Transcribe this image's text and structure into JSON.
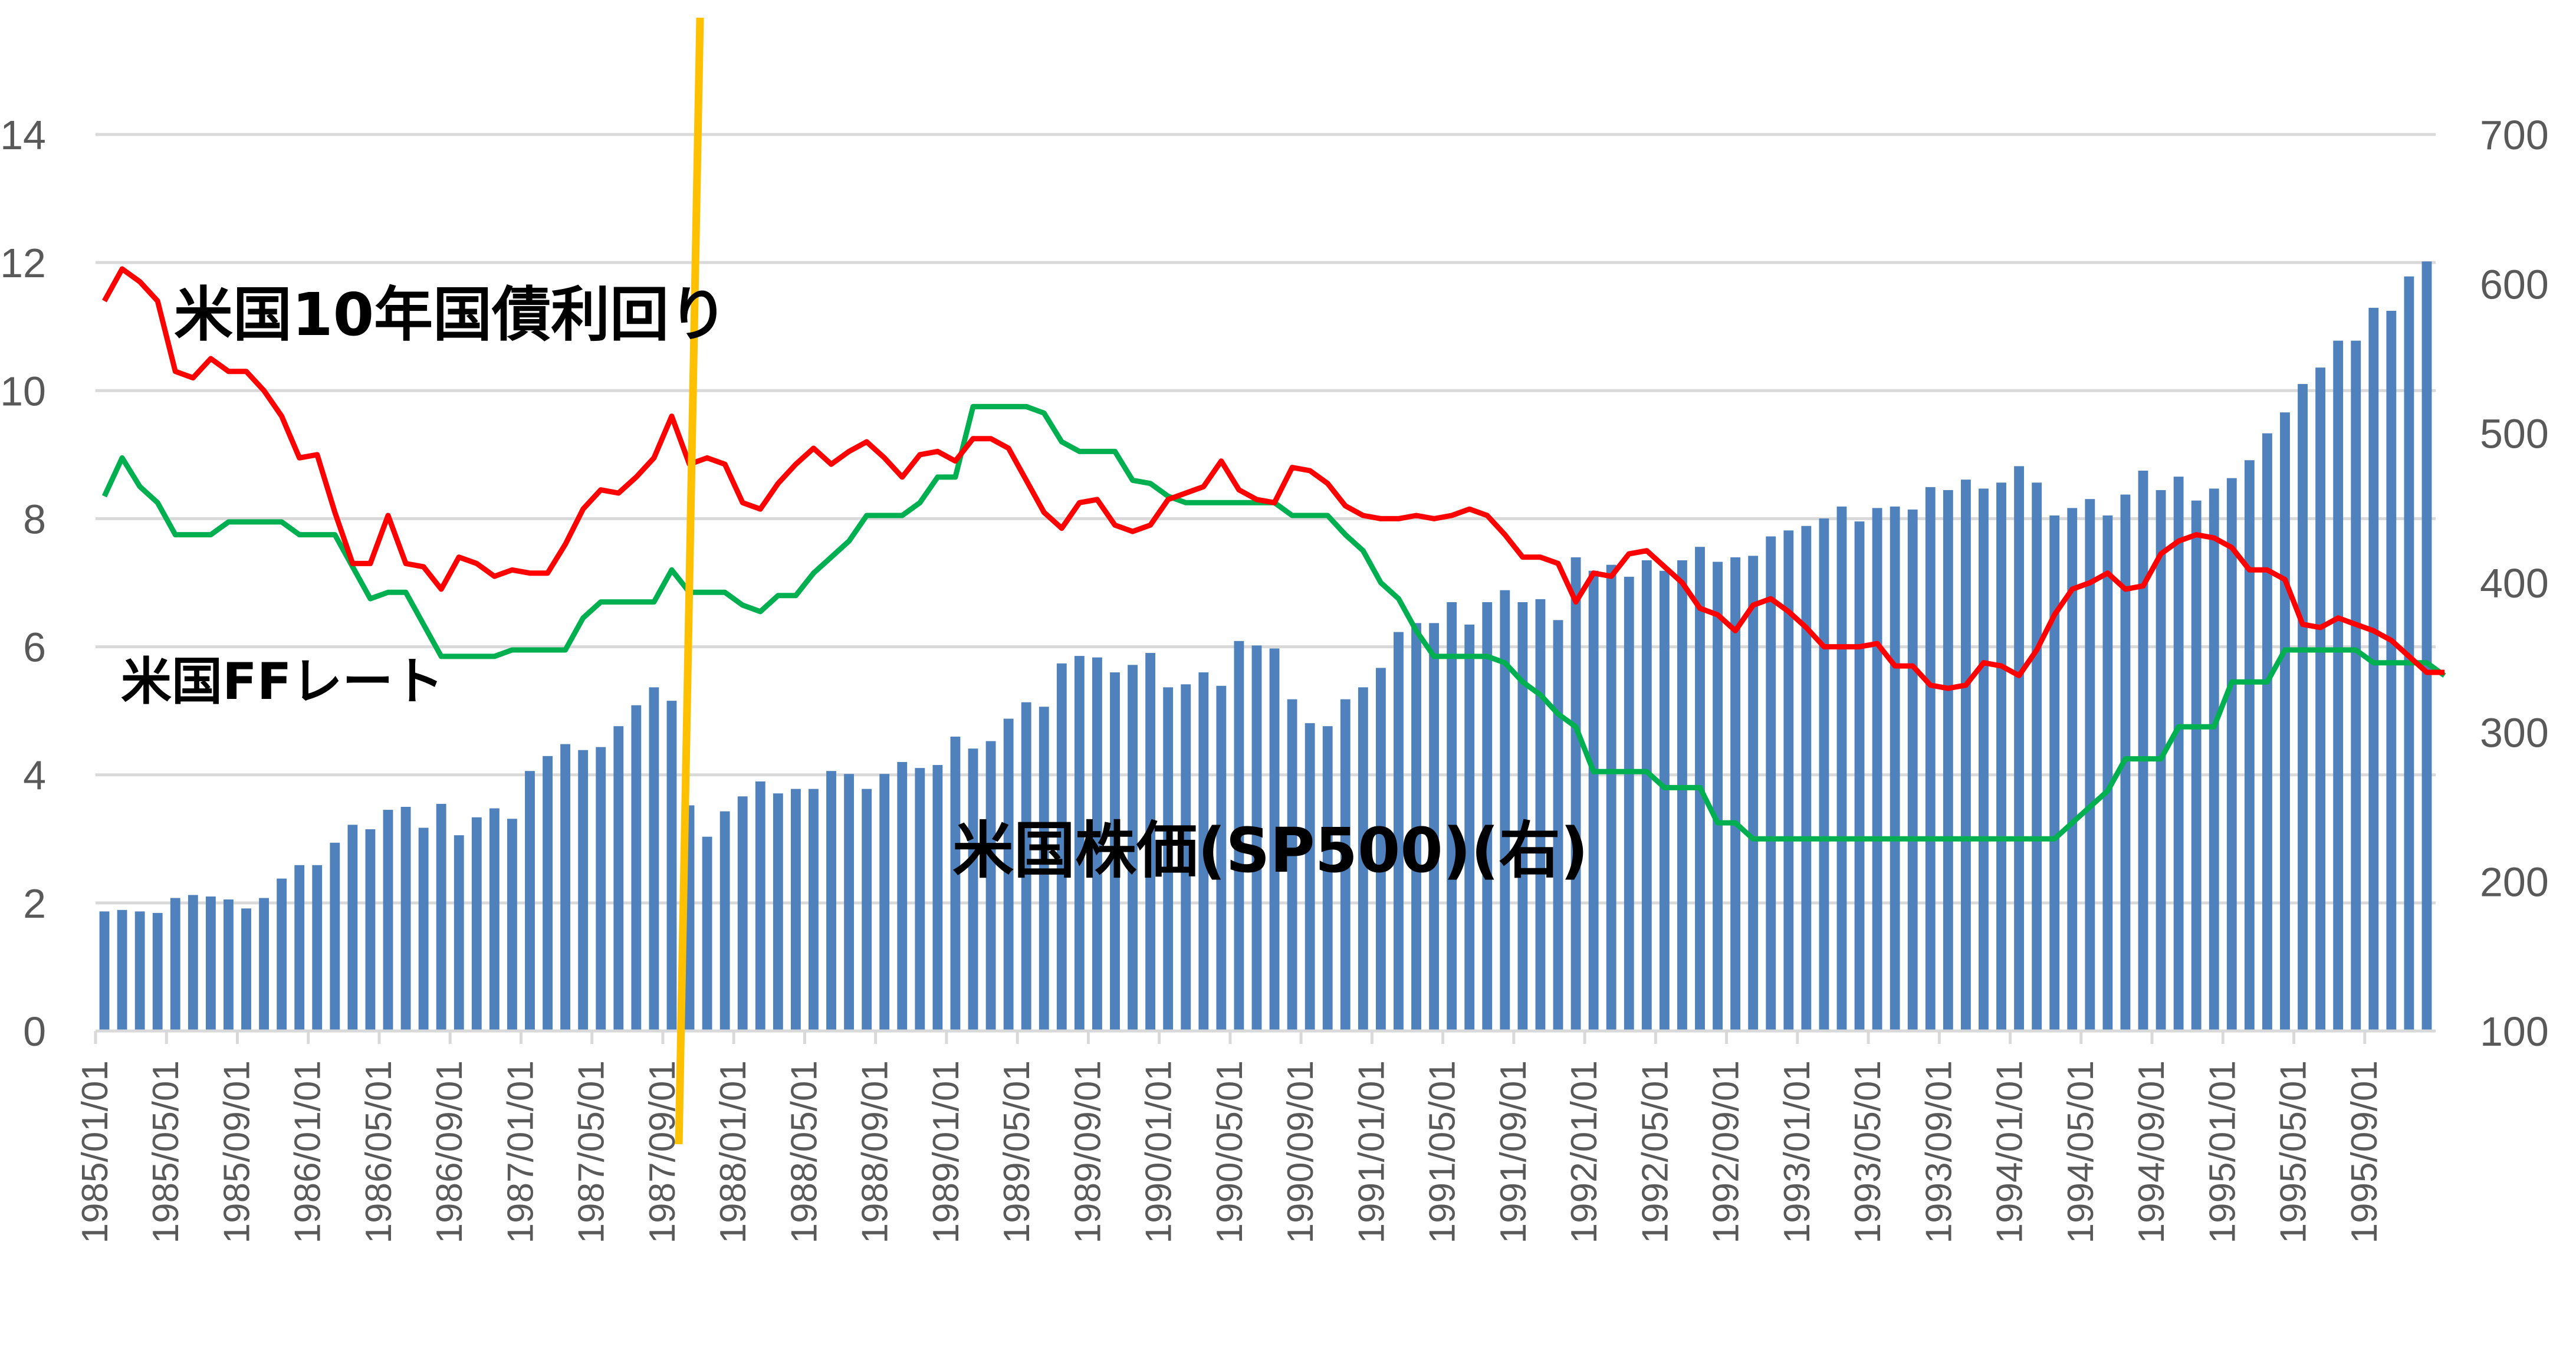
{
  "chart_data": {
    "type": "bar",
    "title": "",
    "xlabel": "",
    "ylabel": "",
    "grid": true,
    "left_axis": {
      "min": 0,
      "max": 14,
      "ticks": [
        0,
        2,
        4,
        6,
        8,
        10,
        12,
        14
      ]
    },
    "right_axis": {
      "min": 100,
      "max": 700,
      "ticks": [
        100,
        200,
        300,
        400,
        500,
        600,
        700
      ]
    },
    "x_start": "1985/01",
    "x_end": "1995/12",
    "x_ticks": [
      "1985/01/01",
      "1985/05/01",
      "1985/09/01",
      "1986/01/01",
      "1986/05/01",
      "1986/09/01",
      "1987/01/01",
      "1987/05/01",
      "1987/09/01",
      "1988/01/01",
      "1988/05/01",
      "1988/09/01",
      "1989/01/01",
      "1989/05/01",
      "1989/09/01",
      "1990/01/01",
      "1990/05/01",
      "1990/09/01",
      "1991/01/01",
      "1991/05/01",
      "1991/09/01",
      "1992/01/01",
      "1992/05/01",
      "1992/09/01",
      "1993/01/01",
      "1993/05/01",
      "1993/09/01",
      "1994/01/01",
      "1994/05/01",
      "1994/09/01",
      "1995/01/01",
      "1995/05/01",
      "1995/09/01"
    ],
    "series": [
      {
        "name": "米国株価(SP500)(右)",
        "type": "bar",
        "axis": "right",
        "color": "#4f81bd",
        "values": [
          180,
          181,
          180,
          179,
          189,
          191,
          190,
          188,
          182,
          189,
          202,
          211,
          211,
          226,
          238,
          235,
          248,
          250,
          236,
          252,
          231,
          243,
          249,
          242,
          274,
          284,
          292,
          288,
          290,
          304,
          318,
          330,
          321,
          251,
          230,
          247,
          257,
          267,
          259,
          262,
          262,
          274,
          272,
          262,
          272,
          280,
          276,
          278,
          297,
          289,
          294,
          309,
          320,
          317,
          346,
          351,
          350,
          340,
          345,
          353,
          330,
          332,
          340,
          331,
          361,
          358,
          356,
          322,
          306,
          304,
          322,
          330,
          343,
          367,
          373,
          373,
          387,
          372,
          387,
          395,
          387,
          389,
          375,
          417,
          408,
          412,
          404,
          415,
          408,
          415,
          424,
          414,
          417,
          418,
          431,
          435,
          438,
          443,
          451,
          441,
          450,
          451,
          449,
          464,
          462,
          469,
          463,
          467,
          478,
          467,
          445,
          450,
          456,
          445,
          459,
          475,
          462,
          471,
          455,
          463,
          470,
          482,
          500,
          514,
          533,
          544,
          562,
          562,
          584,
          582,
          605,
          615
        ]
      },
      {
        "name": "米国10年国債利回り",
        "type": "line",
        "axis": "left",
        "color": "#ff0000",
        "values": [
          11.4,
          11.9,
          11.7,
          11.4,
          10.3,
          10.2,
          10.5,
          10.3,
          10.3,
          10.0,
          9.6,
          8.95,
          9.0,
          8.1,
          7.3,
          7.3,
          8.05,
          7.3,
          7.25,
          6.9,
          7.4,
          7.3,
          7.1,
          7.2,
          7.15,
          7.15,
          7.6,
          8.15,
          8.45,
          8.4,
          8.65,
          8.95,
          9.6,
          8.85,
          8.95,
          8.85,
          8.25,
          8.15,
          8.55,
          8.85,
          9.1,
          8.85,
          9.05,
          9.2,
          8.95,
          8.65,
          9.0,
          9.05,
          8.9,
          9.25,
          9.25,
          9.1,
          8.6,
          8.1,
          7.85,
          8.25,
          8.3,
          7.9,
          7.8,
          7.9,
          8.3,
          8.4,
          8.5,
          8.9,
          8.45,
          8.3,
          8.25,
          8.8,
          8.75,
          8.55,
          8.2,
          8.05,
          8.0,
          8.0,
          8.05,
          8.0,
          8.05,
          8.15,
          8.05,
          7.75,
          7.4,
          7.4,
          7.3,
          6.7,
          7.15,
          7.1,
          7.45,
          7.5,
          7.25,
          7.0,
          6.6,
          6.5,
          6.25,
          6.65,
          6.75,
          6.55,
          6.3,
          6.0,
          6.0,
          6.0,
          6.05,
          5.7,
          5.7,
          5.4,
          5.35,
          5.4,
          5.75,
          5.7,
          5.55,
          5.95,
          6.5,
          6.9,
          7.0,
          7.15,
          6.9,
          6.95,
          7.45,
          7.65,
          7.75,
          7.7,
          7.55,
          7.2,
          7.2,
          7.05,
          6.35,
          6.3,
          6.45,
          6.35,
          6.25,
          6.1,
          5.85,
          5.6,
          5.6
        ]
      },
      {
        "name": "米国FFレート",
        "type": "line",
        "axis": "left",
        "color": "#00b050",
        "values": [
          8.35,
          8.95,
          8.5,
          8.25,
          7.75,
          7.75,
          7.75,
          7.95,
          7.95,
          7.95,
          7.95,
          7.75,
          7.75,
          7.75,
          7.25,
          6.75,
          6.85,
          6.85,
          6.35,
          5.85,
          5.85,
          5.85,
          5.85,
          5.95,
          5.95,
          5.95,
          5.95,
          6.45,
          6.7,
          6.7,
          6.7,
          6.7,
          7.2,
          6.85,
          6.85,
          6.85,
          6.65,
          6.55,
          6.8,
          6.8,
          7.15,
          7.4,
          7.65,
          8.05,
          8.05,
          8.05,
          8.25,
          8.65,
          8.65,
          9.75,
          9.75,
          9.75,
          9.75,
          9.65,
          9.2,
          9.05,
          9.05,
          9.05,
          8.6,
          8.55,
          8.35,
          8.25,
          8.25,
          8.25,
          8.25,
          8.25,
          8.25,
          8.05,
          8.05,
          8.05,
          7.75,
          7.5,
          7.0,
          6.75,
          6.25,
          5.85,
          5.85,
          5.85,
          5.85,
          5.75,
          5.45,
          5.25,
          4.95,
          4.75,
          4.05,
          4.05,
          4.05,
          4.05,
          3.8,
          3.8,
          3.8,
          3.25,
          3.25,
          3.0,
          3.0,
          3.0,
          3.0,
          3.0,
          3.0,
          3.0,
          3.0,
          3.0,
          3.0,
          3.0,
          3.0,
          3.0,
          3.0,
          3.0,
          3.0,
          3.0,
          3.0,
          3.25,
          3.5,
          3.75,
          4.25,
          4.25,
          4.25,
          4.75,
          4.75,
          4.75,
          5.45,
          5.45,
          5.45,
          5.95,
          5.95,
          5.95,
          5.95,
          5.95,
          5.75,
          5.75,
          5.75,
          5.75,
          5.55
        ]
      }
    ],
    "annotations": {
      "bond_label": "米国10年国債利回り",
      "ff_label": "米国FFレート",
      "sp_label": "米国株価(SP500)(右)"
    },
    "vertical_marker": {
      "at": "1987/10",
      "color": "#ffc000"
    }
  }
}
